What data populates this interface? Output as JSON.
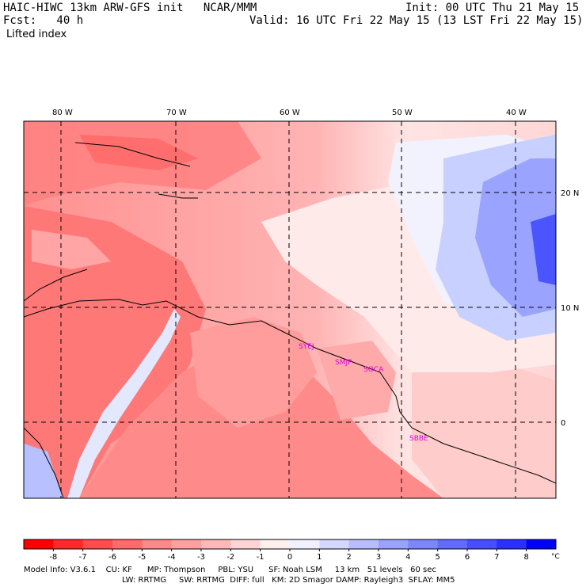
{
  "header": {
    "line1_left": "HAIC-HIWC 13km ARW-GFS init   NCAR/MMM",
    "line1_right": "Init: 00 UTC Thu 21 May 15",
    "line2_left": "Fcst:   40 h",
    "line2_right": "Valid: 16 UTC Fri 22 May 15 (13 LST Fri 22 May 15)",
    "field": "Lifted index"
  },
  "map": {
    "lon_labels": [
      "80 W",
      "70 W",
      "60 W",
      "50 W",
      "40 W"
    ],
    "lat_labels": [
      "20 N",
      "10 N",
      "0"
    ],
    "stations": [
      "SYEJ",
      "SMJP",
      "SOCA",
      "SBBE"
    ],
    "colors": {
      "strong_red": "#ff7a7a",
      "mid_red": "#ff9a9a",
      "light_red": "#ffc8c8",
      "white": "#ffffff",
      "light_blue": "#ccd4ff",
      "mid_blue": "#8090ff",
      "deep_blue": "#3c46ff",
      "station": "#e000e0"
    }
  },
  "colorbar": {
    "labels": [
      "-8",
      "-7",
      "-6",
      "-5",
      "-4",
      "-3",
      "-2",
      "-1",
      "0",
      "1",
      "2",
      "3",
      "4",
      "5",
      "6",
      "7",
      "8"
    ],
    "unit": "°C",
    "colors": [
      "#ff0000",
      "#ff2828",
      "#ff4c4c",
      "#ff6a6a",
      "#ff8888",
      "#ffa0a0",
      "#ffb8b8",
      "#ffd4d4",
      "#fff0f0",
      "#f0f0ff",
      "#d4d8ff",
      "#b8bdff",
      "#9aa2ff",
      "#7e86ff",
      "#626aff",
      "#464eff",
      "#2a30ff",
      "#0000ff"
    ]
  },
  "footer": {
    "line1": "Model Info: V3.6.1    CU: KF      MP: Thompson     PBL: YSU      SF: Noah LSM     13 km   51 levels   60 sec",
    "line2": "LW: RRTMG     SW: RRTMG  DIFF: full   KM: 2D Smagor DAMP: Rayleigh3  SFLAY: MM5"
  }
}
